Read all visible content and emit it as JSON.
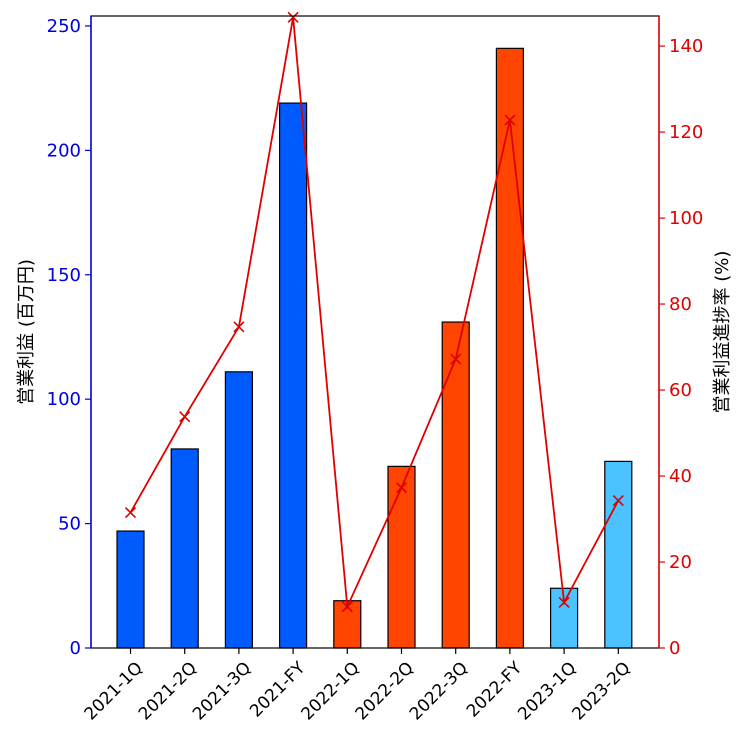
{
  "chart_data": {
    "type": "bar+line",
    "categories": [
      "2021-1Q",
      "2021-2Q",
      "2021-3Q",
      "2021-FY",
      "2022-1Q",
      "2022-2Q",
      "2022-3Q",
      "2022-FY",
      "2023-1Q",
      "2023-2Q"
    ],
    "bar_series": {
      "name": "営業利益",
      "values": [
        47,
        80,
        111,
        219,
        19,
        73,
        131,
        241,
        24,
        75
      ],
      "colors": [
        "#005bff",
        "#005bff",
        "#005bff",
        "#005bff",
        "#ff4500",
        "#ff4500",
        "#ff4500",
        "#ff4500",
        "#4cc3ff",
        "#4cc3ff"
      ]
    },
    "line_series": {
      "name": "営業利益進捗率",
      "values": [
        31.5,
        53.8,
        74.7,
        146.7,
        9.6,
        37.3,
        67.2,
        122.8,
        10.6,
        34.3
      ],
      "color": "#e00000",
      "marker": "x"
    },
    "ylabel_left": "営業利益 (百万円)",
    "ylabel_right": "営業利益進捗率 (%)",
    "ylim_left": [
      0,
      254
    ],
    "ylim_right": [
      0,
      147
    ],
    "yticks_left": [
      "0",
      "50",
      "100",
      "150",
      "200",
      "250"
    ],
    "yticks_right": [
      "0",
      "20",
      "40",
      "60",
      "80",
      "100",
      "120",
      "140"
    ],
    "left_axis_color": "#0000dd",
    "right_axis_color": "#e00000",
    "grid": false,
    "legend": "none"
  }
}
